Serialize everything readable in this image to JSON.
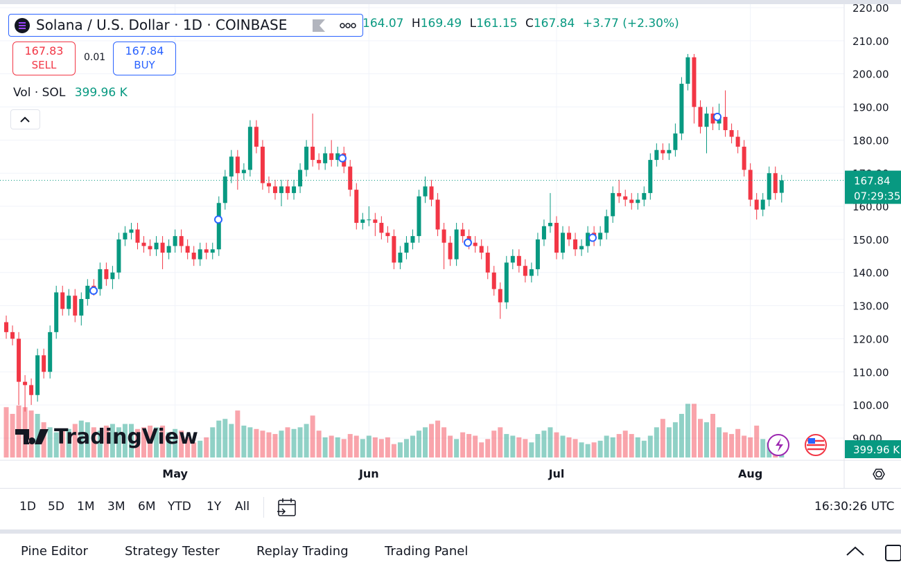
{
  "header": {
    "symbol": "Solana / U.S. Dollar · 1D · COINBASE",
    "ohlc": [
      {
        "v": "164.07"
      },
      {
        "k": "H",
        "v": "169.49"
      },
      {
        "k": "L",
        "v": "161.15"
      },
      {
        "k": "C",
        "v": "167.84"
      }
    ],
    "change": "+3.77 (+2.30%)"
  },
  "trade": {
    "sell_price": "167.83",
    "sell": "SELL",
    "spread": "0.01",
    "buy_price": "167.84",
    "buy": "BUY"
  },
  "volume_legend": {
    "label": "Vol · SOL",
    "value": "399.96 K"
  },
  "watermark": "TradingView",
  "price_badge": {
    "price": "167.84",
    "countdown": "07:29:35"
  },
  "timeframes": [
    "1D",
    "5D",
    "1M",
    "3M",
    "6M",
    "YTD",
    "1Y",
    "All"
  ],
  "clock": "16:30:26 UTC",
  "tabs": [
    "Pine Editor",
    "Strategy Tester",
    "Replay Trading",
    "Trading Panel"
  ],
  "chart_data": {
    "type": "candlestick",
    "up_color": "#089981",
    "down_color": "#f23645",
    "grid": true,
    "xlim": [
      -1,
      134
    ],
    "ylim": [
      83.3,
      220
    ],
    "vlim": [
      0,
      1650
    ],
    "xticks": [
      {
        "value": 27,
        "label": "May"
      },
      {
        "value": 58,
        "label": "Jun"
      },
      {
        "value": 88,
        "label": "Jul"
      },
      {
        "value": 119,
        "label": "Aug"
      }
    ],
    "yticks": [
      {
        "value": 90,
        "label": "90.00"
      },
      {
        "value": 100,
        "label": "100.00"
      },
      {
        "value": 110,
        "label": "110.00"
      },
      {
        "value": 120,
        "label": "120.00"
      },
      {
        "value": 130,
        "label": "130.00"
      },
      {
        "value": 140,
        "label": "140.00"
      },
      {
        "value": 150,
        "label": "150.00"
      },
      {
        "value": 160,
        "label": "160.00"
      },
      {
        "value": 170,
        "label": "170.00"
      },
      {
        "value": 180,
        "label": "180.00"
      },
      {
        "value": 190,
        "label": "190.00"
      },
      {
        "value": 200,
        "label": "200.00"
      },
      {
        "value": 210,
        "label": "210.00"
      },
      {
        "value": 220,
        "label": "220.00"
      }
    ],
    "open": [
      125,
      122,
      120,
      107,
      106,
      103,
      115,
      110,
      122,
      134,
      129,
      133,
      127,
      132,
      136,
      135,
      141,
      138,
      140,
      150,
      152,
      153,
      149,
      148,
      147,
      149,
      146,
      148,
      151,
      148,
      146,
      144,
      147,
      146,
      147,
      161,
      169,
      175,
      170,
      171,
      184,
      178,
      167,
      166,
      164,
      166,
      164,
      166,
      171,
      178,
      174,
      173,
      176,
      174,
      176,
      172,
      165,
      155,
      156,
      156,
      155,
      152,
      151,
      143,
      146,
      149,
      151,
      163,
      166,
      162,
      153,
      149,
      144,
      153,
      151,
      149,
      148,
      146,
      140,
      135,
      131,
      143,
      145,
      142,
      139,
      141,
      150,
      154,
      155,
      146,
      152,
      150,
      147,
      148,
      152,
      150,
      152,
      157,
      164,
      163,
      162,
      161,
      162,
      164,
      174,
      177,
      176,
      177,
      182,
      197,
      205,
      190,
      184,
      188,
      185,
      187,
      183,
      181,
      178,
      171,
      162,
      159,
      162,
      170,
      164.07
    ],
    "high": [
      127,
      124,
      122,
      109,
      108,
      117,
      117,
      124,
      136,
      136,
      135,
      135,
      134,
      138,
      138,
      143,
      143,
      142,
      152,
      154,
      155,
      155,
      151,
      150,
      151,
      151,
      150,
      153,
      153,
      150,
      148,
      149,
      149,
      149,
      163,
      171,
      177,
      177,
      173,
      186,
      186,
      180,
      169,
      168,
      168,
      168,
      168,
      173,
      180,
      188,
      176,
      178,
      180,
      178,
      178,
      174,
      167,
      158,
      160,
      158,
      157,
      154,
      153,
      148,
      151,
      153,
      165,
      169,
      168,
      164,
      155,
      151,
      155,
      155,
      153,
      151,
      150,
      148,
      142,
      137,
      145,
      147,
      147,
      144,
      143,
      152,
      156,
      164,
      157,
      154,
      154,
      152,
      150,
      154,
      154,
      154,
      159,
      166,
      168,
      165,
      164,
      164,
      166,
      176,
      179,
      179,
      179,
      185,
      199,
      206,
      206,
      192,
      190,
      190,
      191,
      195,
      185,
      183,
      180,
      173,
      164,
      164,
      172,
      172,
      169.49
    ],
    "low": [
      120,
      118,
      100,
      98,
      100,
      101,
      108,
      108,
      120,
      127,
      127,
      125,
      124,
      130,
      133,
      133,
      136,
      135,
      138,
      148,
      150,
      147,
      146,
      145,
      145,
      141,
      144,
      146,
      146,
      144,
      142,
      142,
      144,
      144,
      145,
      159,
      167,
      165,
      168,
      169,
      176,
      165,
      164,
      162,
      160,
      162,
      162,
      164,
      169,
      172,
      171,
      171,
      172,
      172,
      170,
      163,
      153,
      153,
      154,
      151,
      150,
      149,
      141,
      141,
      144,
      147,
      149,
      161,
      160,
      151,
      141,
      142,
      142,
      149,
      147,
      146,
      144,
      138,
      133,
      126,
      129,
      141,
      140,
      137,
      137,
      139,
      148,
      152,
      144,
      144,
      148,
      145,
      145,
      146,
      148,
      148,
      150,
      155,
      161,
      160,
      159,
      159,
      160,
      162,
      172,
      174,
      174,
      175,
      180,
      195,
      185,
      182,
      176,
      183,
      183,
      181,
      179,
      176,
      169,
      160,
      156,
      157,
      160,
      162,
      161.15
    ],
    "close": [
      122,
      120,
      107,
      106,
      103,
      115,
      110,
      122,
      134,
      129,
      133,
      127,
      132,
      136,
      135,
      141,
      138,
      140,
      150,
      152,
      153,
      149,
      148,
      147,
      149,
      146,
      148,
      151,
      148,
      146,
      144,
      147,
      146,
      147,
      161,
      169,
      175,
      170,
      171,
      184,
      178,
      167,
      166,
      164,
      166,
      164,
      166,
      171,
      178,
      174,
      173,
      176,
      174,
      176,
      172,
      165,
      155,
      156,
      156,
      155,
      152,
      151,
      143,
      146,
      149,
      151,
      163,
      166,
      162,
      153,
      149,
      144,
      153,
      151,
      149,
      148,
      146,
      140,
      135,
      131,
      143,
      145,
      142,
      139,
      141,
      150,
      154,
      155,
      146,
      152,
      150,
      147,
      148,
      152,
      150,
      152,
      157,
      164,
      163,
      162,
      161,
      162,
      164,
      174,
      177,
      176,
      177,
      182,
      197,
      205,
      190,
      184,
      188,
      185,
      187,
      183,
      181,
      178,
      171,
      162,
      159,
      162,
      170,
      164,
      167.84
    ],
    "volume": [
      1500,
      1300,
      1550,
      1500,
      1400,
      1300,
      1050,
      900,
      750,
      800,
      850,
      1000,
      1100,
      1050,
      900,
      800,
      950,
      1000,
      900,
      1000,
      1000,
      850,
      900,
      950,
      900,
      950,
      750,
      850,
      800,
      600,
      450,
      500,
      600,
      900,
      1100,
      1150,
      1000,
      1400,
      950,
      900,
      850,
      800,
      750,
      700,
      800,
      900,
      850,
      900,
      1000,
      1250,
      800,
      600,
      650,
      600,
      550,
      700,
      650,
      550,
      650,
      600,
      550,
      600,
      400,
      450,
      550,
      650,
      800,
      900,
      1000,
      1100,
      900,
      650,
      550,
      750,
      700,
      650,
      450,
      550,
      800,
      900,
      700,
      650,
      600,
      550,
      450,
      700,
      800,
      900,
      750,
      650,
      600,
      550,
      450,
      400,
      450,
      500,
      650,
      600,
      700,
      800,
      700,
      600,
      500,
      650,
      900,
      1150,
      900,
      1050,
      1300,
      1600,
      1600,
      1150,
      1050,
      1300,
      900,
      750,
      700,
      850,
      650,
      600,
      950,
      550,
      450,
      650,
      399.96
    ]
  }
}
